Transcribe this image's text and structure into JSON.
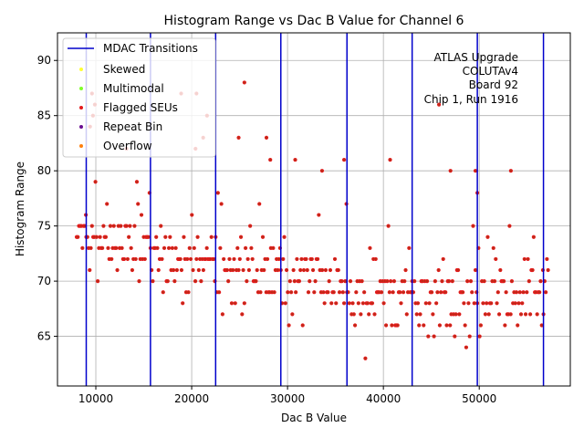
{
  "chart_data": {
    "type": "scatter",
    "title": "Histogram Range vs Dac B Value for Channel 6",
    "xlabel": "Dac B Value",
    "ylabel": "Histogram Range",
    "xlim": [
      6000,
      59500
    ],
    "ylim": [
      60.5,
      92.5
    ],
    "xticks": [
      10000,
      20000,
      30000,
      40000,
      50000
    ],
    "yticks": [
      65,
      70,
      75,
      80,
      85,
      90
    ],
    "grid": true,
    "legend_position": "top-left",
    "legend": [
      {
        "label": "MDAC Transitions",
        "kind": "line",
        "color": "#0000cc"
      },
      {
        "label": "Skewed",
        "kind": "dot",
        "color": "#ffff33"
      },
      {
        "label": "Multimodal",
        "kind": "dot",
        "color": "#7fff2a"
      },
      {
        "label": "Flagged SEUs",
        "kind": "dot",
        "color": "#e41a1c"
      },
      {
        "label": "Repeat Bin",
        "kind": "dot",
        "color": "#6a0d91"
      },
      {
        "label": "Overflow",
        "kind": "dot",
        "color": "#ff7f0e"
      }
    ],
    "annotation": [
      "ATLAS Upgrade",
      "COLUTAv4",
      "Board 92",
      "Chip 1, Run 1916"
    ],
    "mdac_transitions": [
      9000,
      15700,
      22500,
      29300,
      36200,
      43000,
      49800,
      56700
    ],
    "segments": [
      {
        "x_start": 8000,
        "x_end": 9000,
        "y_min": 70,
        "y_max": 80,
        "mode": 75
      },
      {
        "x_start": 9000,
        "x_end": 15700,
        "y_min": 67,
        "y_max": 81,
        "mode": 73
      },
      {
        "x_start": 15700,
        "x_end": 22500,
        "y_min": 66,
        "y_max": 79,
        "mode": 72
      },
      {
        "x_start": 22500,
        "x_end": 29300,
        "y_min": 65,
        "y_max": 78,
        "mode": 71
      },
      {
        "x_start": 29300,
        "x_end": 36200,
        "y_min": 63,
        "y_max": 77,
        "mode": 70
      },
      {
        "x_start": 36200,
        "x_end": 43000,
        "y_min": 62,
        "y_max": 76,
        "mode": 69
      },
      {
        "x_start": 43000,
        "x_end": 49800,
        "y_min": 63,
        "y_max": 75,
        "mode": 68
      },
      {
        "x_start": 49800,
        "x_end": 56700,
        "y_min": 64,
        "y_max": 75,
        "mode": 69
      },
      {
        "x_start": 56700,
        "x_end": 57200,
        "y_min": 64,
        "y_max": 73,
        "mode": 69
      }
    ],
    "x_step": 120,
    "outliers": [
      {
        "x": 9600,
        "y": 87
      },
      {
        "x": 9700,
        "y": 85
      },
      {
        "x": 9900,
        "y": 86
      },
      {
        "x": 9400,
        "y": 84
      },
      {
        "x": 13200,
        "y": 82
      },
      {
        "x": 18900,
        "y": 87
      },
      {
        "x": 20500,
        "y": 87
      },
      {
        "x": 20400,
        "y": 82
      },
      {
        "x": 21600,
        "y": 85
      },
      {
        "x": 21200,
        "y": 83
      },
      {
        "x": 24900,
        "y": 83
      },
      {
        "x": 25500,
        "y": 88
      },
      {
        "x": 27800,
        "y": 83
      },
      {
        "x": 28200,
        "y": 81
      },
      {
        "x": 30800,
        "y": 81
      },
      {
        "x": 33600,
        "y": 80
      },
      {
        "x": 35900,
        "y": 81
      },
      {
        "x": 40700,
        "y": 81
      },
      {
        "x": 45800,
        "y": 86
      },
      {
        "x": 47000,
        "y": 80
      },
      {
        "x": 49600,
        "y": 80
      },
      {
        "x": 49800,
        "y": 78
      },
      {
        "x": 53300,
        "y": 80
      }
    ]
  }
}
